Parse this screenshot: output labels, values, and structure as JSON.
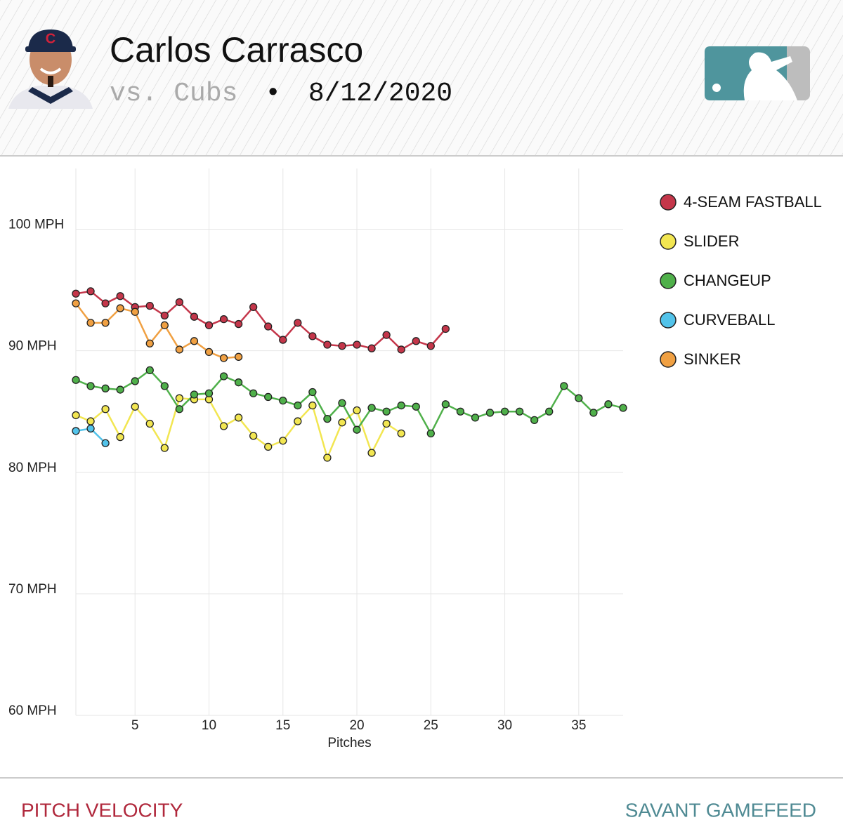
{
  "header": {
    "name": "Carlos Carrasco",
    "opponent": "vs. Cubs",
    "separator": "•",
    "date": "8/12/2020"
  },
  "footer": {
    "left": "PITCH VELOCITY",
    "right": "SAVANT GAMEFEED"
  },
  "chart_data": {
    "type": "line",
    "x_label": "Pitches",
    "legend": "right",
    "grid": true,
    "x": [
      1,
      2,
      3,
      4,
      5,
      6,
      7,
      8,
      9,
      10,
      11,
      12,
      13,
      14,
      15,
      16,
      17,
      18,
      19,
      20,
      21,
      22,
      23,
      24,
      25,
      26,
      27,
      28,
      29,
      30,
      31,
      32,
      33,
      34,
      35,
      36,
      37,
      38
    ],
    "xlim": [
      1,
      38
    ],
    "xticks": [
      5,
      10,
      15,
      20,
      25,
      30,
      35
    ],
    "ylim": [
      60,
      105
    ],
    "yticks": [
      {
        "value": 60,
        "label": "60 MPH"
      },
      {
        "value": 70,
        "label": "70 MPH"
      },
      {
        "value": 80,
        "label": "80 MPH"
      },
      {
        "value": 90,
        "label": "90 MPH"
      },
      {
        "value": 100,
        "label": "100 MPH"
      }
    ],
    "series": [
      {
        "name": "4-SEAM FASTBALL",
        "color": "#c4364a",
        "values": [
          94.7,
          94.9,
          93.9,
          94.5,
          93.6,
          93.7,
          92.9,
          94.0,
          92.8,
          92.1,
          92.6,
          92.2,
          93.6,
          92.0,
          90.9,
          92.3,
          91.2,
          90.5,
          90.4,
          90.5,
          90.2,
          91.3,
          90.1,
          90.8,
          90.4,
          91.8,
          null,
          null,
          null,
          null,
          null,
          null,
          null,
          null,
          null,
          null,
          null,
          null
        ]
      },
      {
        "name": "SLIDER",
        "color": "#f2e651",
        "values": [
          84.7,
          84.2,
          85.2,
          82.9,
          85.4,
          84.0,
          82.0,
          86.1,
          86.0,
          86.0,
          83.8,
          84.5,
          83.0,
          82.1,
          82.6,
          84.2,
          85.5,
          81.2,
          84.1,
          85.1,
          81.6,
          84.0,
          83.2,
          null,
          null,
          null,
          null,
          null,
          null,
          null,
          null,
          null,
          null,
          null,
          null,
          null,
          null,
          null
        ]
      },
      {
        "name": "CHANGEUP",
        "color": "#4fb04a",
        "values": [
          87.6,
          87.1,
          86.9,
          86.8,
          87.5,
          88.4,
          87.1,
          85.2,
          86.4,
          86.5,
          87.9,
          87.4,
          86.5,
          86.2,
          85.9,
          85.5,
          86.6,
          84.4,
          85.7,
          83.5,
          85.3,
          85.0,
          85.5,
          85.4,
          83.2,
          85.6,
          85.0,
          84.5,
          84.9,
          85.0,
          85.0,
          84.3,
          85.0,
          87.1,
          86.1,
          84.9,
          85.6,
          85.3
        ]
      },
      {
        "name": "CURVEBALL",
        "color": "#52c3ea",
        "values": [
          83.4,
          83.6,
          82.4,
          null,
          null,
          null,
          null,
          null,
          null,
          null,
          null,
          null,
          null,
          null,
          null,
          null,
          null,
          null,
          null,
          null,
          null,
          null,
          null,
          null,
          null,
          null,
          null,
          null,
          null,
          null,
          null,
          null,
          null,
          null,
          null,
          null,
          null,
          null
        ]
      },
      {
        "name": "SINKER",
        "color": "#f0a042",
        "values": [
          93.9,
          92.3,
          92.3,
          93.5,
          93.2,
          90.6,
          92.1,
          90.1,
          90.8,
          89.9,
          89.4,
          89.5,
          null,
          null,
          null,
          null,
          null,
          null,
          null,
          null,
          null,
          null,
          null,
          null,
          null,
          null,
          null,
          null,
          null,
          null,
          null,
          null,
          null,
          null,
          null,
          null,
          null,
          null
        ]
      }
    ]
  }
}
